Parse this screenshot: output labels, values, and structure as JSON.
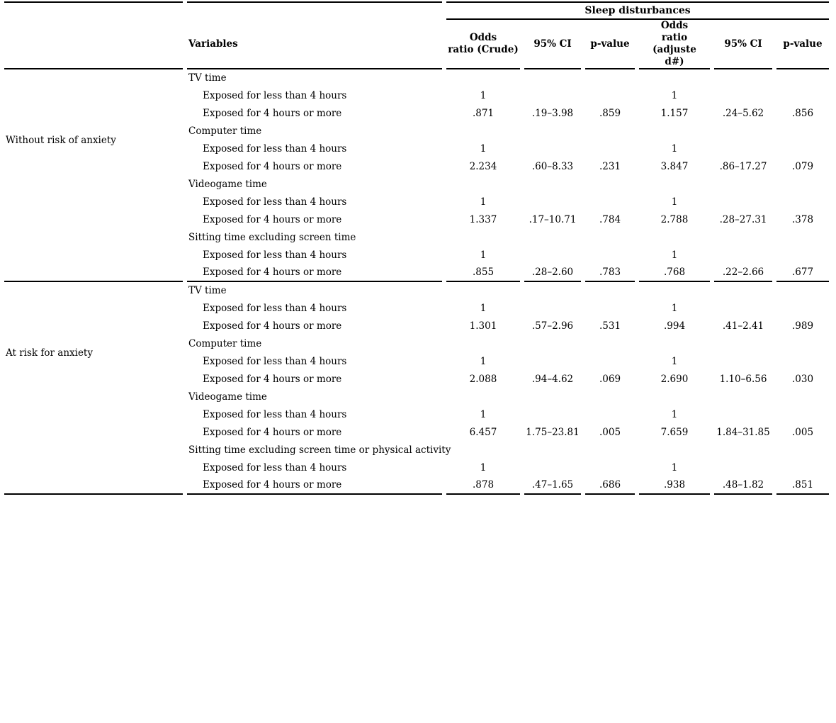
{
  "table": {
    "span_header": "Sleep disturbances",
    "variables_header": "Variables",
    "columns": [
      "Odds\nratio (Crude)",
      "95% CI",
      "p-value",
      "Odds\nratio (adjuste\nd#)",
      "95% CI",
      "p-value"
    ],
    "groups": [
      {
        "label": "Without risk of anxiety",
        "rows": [
          {
            "label": "TV time",
            "indent": false,
            "values": [
              "",
              "",
              "",
              "",
              "",
              ""
            ]
          },
          {
            "label": "Exposed for less than 4 hours",
            "indent": true,
            "values": [
              "1",
              "",
              "",
              "1",
              "",
              ""
            ]
          },
          {
            "label": "Exposed for 4 hours or more",
            "indent": true,
            "values": [
              ".871",
              ".19–3.98",
              ".859",
              "1.157",
              ".24–5.62",
              ".856"
            ]
          },
          {
            "label": "Computer time",
            "indent": false,
            "values": [
              "",
              "",
              "",
              "",
              "",
              ""
            ]
          },
          {
            "label": "Exposed for less than 4 hours",
            "indent": true,
            "values": [
              "1",
              "",
              "",
              "1",
              "",
              ""
            ]
          },
          {
            "label": "Exposed for 4 hours or more",
            "indent": true,
            "values": [
              "2.234",
              ".60–8.33",
              ".231",
              "3.847",
              ".86–17.27",
              ".079"
            ]
          },
          {
            "label": "Videogame time",
            "indent": false,
            "values": [
              "",
              "",
              "",
              "",
              "",
              ""
            ]
          },
          {
            "label": "Exposed for less than 4 hours",
            "indent": true,
            "values": [
              "1",
              "",
              "",
              "1",
              "",
              ""
            ]
          },
          {
            "label": "Exposed for 4 hours or more",
            "indent": true,
            "values": [
              "1.337",
              ".17–10.71",
              ".784",
              "2.788",
              ".28–27.31",
              ".378"
            ]
          },
          {
            "label": "Sitting time excluding screen time",
            "indent": false,
            "values": [
              "",
              "",
              "",
              "",
              "",
              ""
            ]
          },
          {
            "label": "Exposed for less than 4 hours",
            "indent": true,
            "values": [
              "1",
              "",
              "",
              "1",
              "",
              ""
            ]
          },
          {
            "label": "Exposed for 4 hours or more",
            "indent": true,
            "values": [
              ".855",
              ".28–2.60",
              ".783",
              ".768",
              ".22–2.66",
              ".677"
            ]
          }
        ]
      },
      {
        "label": "At risk for anxiety",
        "rows": [
          {
            "label": "TV time",
            "indent": false,
            "values": [
              "",
              "",
              "",
              "",
              "",
              ""
            ]
          },
          {
            "label": "Exposed for less than 4 hours",
            "indent": true,
            "values": [
              "1",
              "",
              "",
              "1",
              "",
              ""
            ]
          },
          {
            "label": "Exposed for 4 hours or more",
            "indent": true,
            "values": [
              "1.301",
              ".57–2.96",
              ".531",
              ".994",
              ".41–2.41",
              ".989"
            ]
          },
          {
            "label": "Computer time",
            "indent": false,
            "values": [
              "",
              "",
              "",
              "",
              "",
              ""
            ]
          },
          {
            "label": "Exposed for less than 4 hours",
            "indent": true,
            "values": [
              "1",
              "",
              "",
              "1",
              "",
              ""
            ]
          },
          {
            "label": "Exposed for 4 hours or more",
            "indent": true,
            "values": [
              "2.088",
              ".94–4.62",
              ".069",
              "2.690",
              "1.10–6.56",
              ".030"
            ]
          },
          {
            "label": "Videogame time",
            "indent": false,
            "values": [
              "",
              "",
              "",
              "",
              "",
              ""
            ]
          },
          {
            "label": "Exposed for less than 4 hours",
            "indent": true,
            "values": [
              "1",
              "",
              "",
              "1",
              "",
              ""
            ]
          },
          {
            "label": "Exposed for 4 hours or more",
            "indent": true,
            "values": [
              "6.457",
              "1.75–23.81",
              ".005",
              "7.659",
              "1.84–31.85",
              ".005"
            ]
          },
          {
            "label": "Sitting time excluding screen time or physical activity",
            "indent": false,
            "values": [
              "",
              "",
              "",
              "",
              "",
              ""
            ]
          },
          {
            "label": "Exposed for less than 4 hours",
            "indent": true,
            "values": [
              "1",
              "",
              "",
              "1",
              "",
              ""
            ]
          },
          {
            "label": "Exposed for 4 hours or more",
            "indent": true,
            "values": [
              ".878",
              ".47–1.65",
              ".686",
              ".938",
              ".48–1.82",
              ".851"
            ]
          }
        ]
      }
    ]
  },
  "colors": {
    "text": "#000000",
    "background": "#ffffff",
    "rule": "#000000"
  }
}
